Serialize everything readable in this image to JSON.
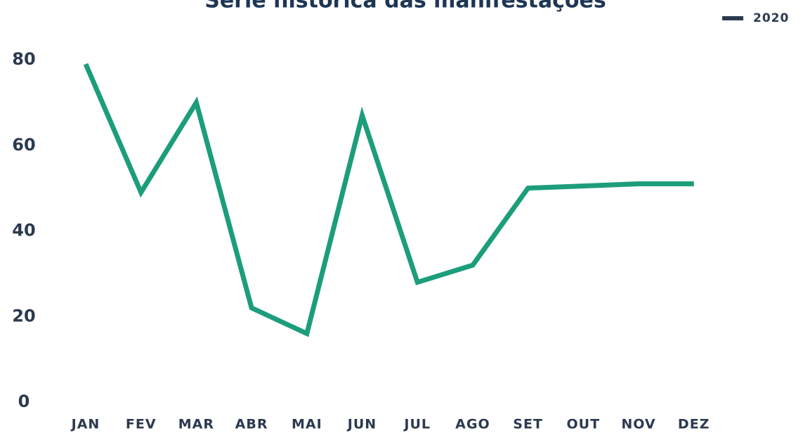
{
  "chart_data": {
    "type": "line",
    "title": "Série histórica das manifestações",
    "categories": [
      "JAN",
      "FEV",
      "MAR",
      "ABR",
      "MAI",
      "JUN",
      "JUL",
      "AGO",
      "SET",
      "OUT",
      "NOV",
      "DEZ"
    ],
    "series": [
      {
        "name": "2020",
        "color": "#1c9d7b",
        "legend_color": "#2b3a4f",
        "values": [
          79,
          49,
          70,
          22,
          16,
          67,
          28,
          32,
          50,
          50.5,
          51,
          51
        ]
      }
    ],
    "ylim": [
      0,
      80
    ],
    "yticks": [
      0,
      20,
      40,
      60,
      80
    ],
    "grid": false,
    "legend": "top-right"
  }
}
